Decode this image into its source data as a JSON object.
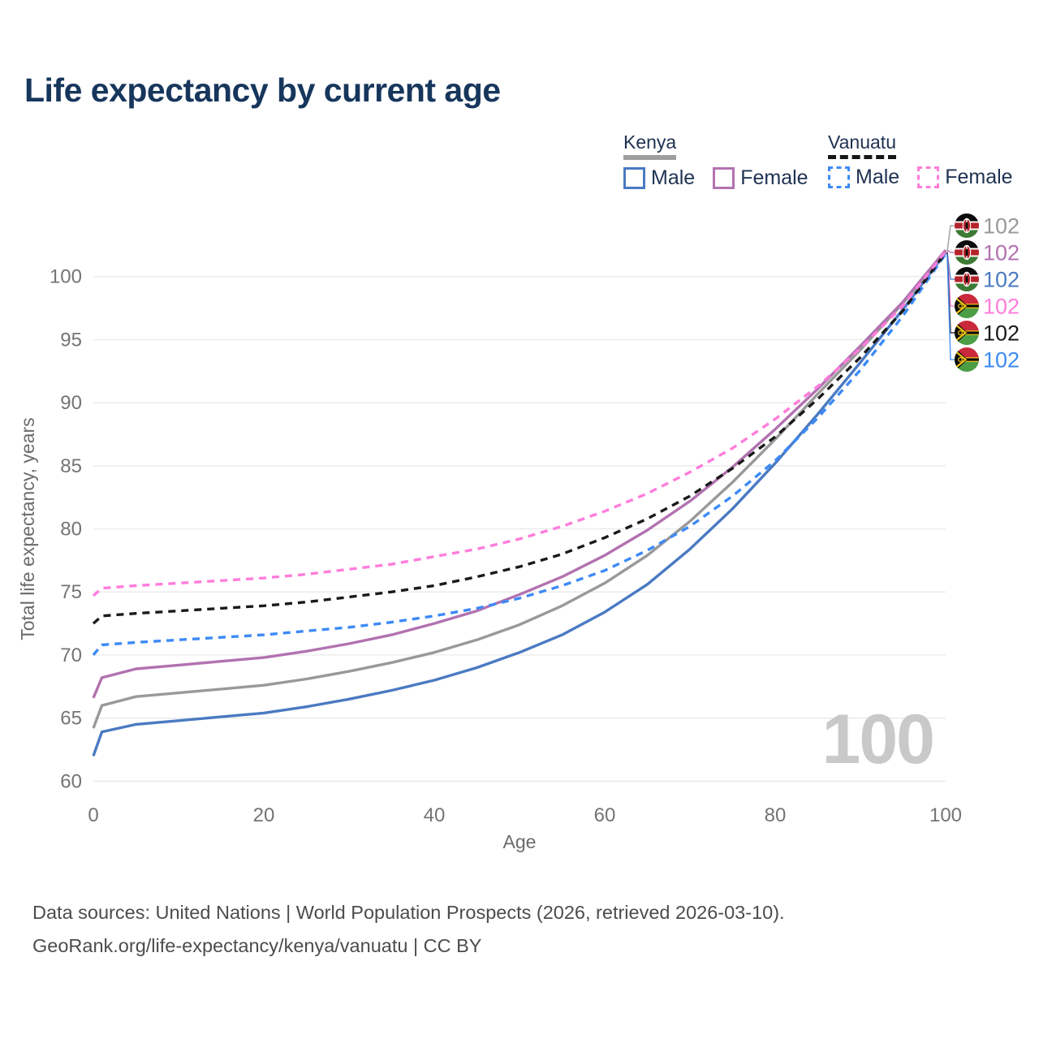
{
  "title": "Life expectancy by current age",
  "legend": {
    "groups": [
      {
        "name": "Kenya",
        "underline_color": "#9e9e9e",
        "underline_style": "solid",
        "items": [
          {
            "label": "Male",
            "color": "#4a7ac2",
            "dashed": false
          },
          {
            "label": "Female",
            "color": "#b272b0",
            "dashed": false
          }
        ]
      },
      {
        "name": "Vanuatu",
        "underline_color": "#161616",
        "underline_style": "dashed",
        "items": [
          {
            "label": "Male",
            "color": "#3d8af7",
            "dashed": true
          },
          {
            "label": "Female",
            "color": "#ff7ddb",
            "dashed": true
          }
        ]
      }
    ]
  },
  "chart_data": {
    "type": "line",
    "title": "Life expectancy by current age",
    "xlabel": "Age",
    "ylabel": "Total life expectancy, years",
    "xlim": [
      0,
      100
    ],
    "ylim": [
      58.8,
      103.2
    ],
    "xticks": [
      0,
      20,
      40,
      60,
      80,
      100
    ],
    "yticks": [
      60,
      65,
      70,
      75,
      80,
      85,
      90,
      95,
      100
    ],
    "grid": true,
    "grid_color": "#e8e8e8",
    "legend_position": "top-right",
    "x": [
      0,
      1,
      5,
      10,
      15,
      20,
      25,
      30,
      35,
      40,
      45,
      50,
      55,
      60,
      65,
      70,
      75,
      80,
      85,
      90,
      95,
      100
    ],
    "series": [
      {
        "name": "Kenya",
        "country": "Kenya",
        "sex": "both",
        "color": "#999999",
        "dashed": false,
        "flag": "KE",
        "end_label": "102",
        "values": [
          64.2,
          66.0,
          66.7,
          67.0,
          67.3,
          67.6,
          68.1,
          68.7,
          69.4,
          70.2,
          71.2,
          72.4,
          73.9,
          75.7,
          77.9,
          80.6,
          83.7,
          87.1,
          90.7,
          94.2,
          97.9,
          102.0
        ]
      },
      {
        "name": "Kenya Female",
        "country": "Kenya",
        "sex": "female",
        "color": "#b272b0",
        "dashed": false,
        "flag": "KE",
        "end_label": "102",
        "values": [
          66.6,
          68.2,
          68.9,
          69.2,
          69.5,
          69.8,
          70.3,
          70.9,
          71.6,
          72.5,
          73.5,
          74.8,
          76.2,
          77.9,
          79.9,
          82.2,
          84.9,
          87.9,
          91.1,
          94.5,
          98.0,
          102.1
        ]
      },
      {
        "name": "Kenya Male",
        "country": "Kenya",
        "sex": "male",
        "color": "#4a7ac2",
        "dashed": false,
        "flag": "KE",
        "end_label": "102",
        "values": [
          62.0,
          63.9,
          64.5,
          64.8,
          65.1,
          65.4,
          65.9,
          66.5,
          67.2,
          68.0,
          69.0,
          70.2,
          71.6,
          73.4,
          75.6,
          78.4,
          81.6,
          85.2,
          89.1,
          93.2,
          97.4,
          101.9
        ]
      },
      {
        "name": "Vanuatu Female",
        "country": "Vanuatu",
        "sex": "female",
        "color": "#ff7ddb",
        "dashed": true,
        "flag": "VU",
        "end_label": "102",
        "values": [
          74.7,
          75.3,
          75.5,
          75.7,
          75.9,
          76.1,
          76.4,
          76.8,
          77.2,
          77.8,
          78.4,
          79.2,
          80.2,
          81.4,
          82.8,
          84.5,
          86.4,
          88.7,
          91.3,
          94.3,
          97.7,
          102.0
        ]
      },
      {
        "name": "Vanuatu",
        "country": "Vanuatu",
        "sex": "both",
        "color": "#1a1a1a",
        "dashed": true,
        "flag": "VU",
        "end_label": "102",
        "values": [
          72.5,
          73.1,
          73.3,
          73.5,
          73.7,
          73.9,
          74.2,
          74.6,
          75.0,
          75.5,
          76.2,
          77.0,
          78.0,
          79.3,
          80.8,
          82.6,
          84.8,
          87.3,
          90.3,
          93.6,
          97.3,
          101.9
        ]
      },
      {
        "name": "Vanuatu Male",
        "country": "Vanuatu",
        "sex": "male",
        "color": "#3d8af7",
        "dashed": true,
        "flag": "VU",
        "end_label": "102",
        "values": [
          70.0,
          70.8,
          71.0,
          71.2,
          71.4,
          71.6,
          71.9,
          72.2,
          72.6,
          73.1,
          73.7,
          74.5,
          75.5,
          76.7,
          78.3,
          80.2,
          82.6,
          85.4,
          88.8,
          92.6,
          96.9,
          101.8
        ]
      }
    ]
  },
  "watermark": "100",
  "footer": {
    "line1": "Data sources: United Nations | World Population Prospects (2026, retrieved 2026-03-10).",
    "line2": "GeoRank.org/life-expectancy/kenya/vanuatu | CC BY"
  }
}
